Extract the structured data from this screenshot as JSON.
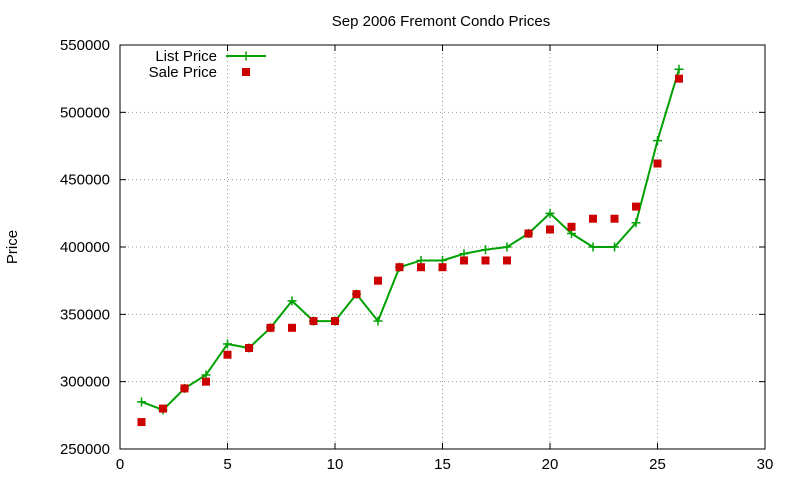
{
  "chart_data": {
    "type": "line",
    "title": "Sep 2006 Fremont Condo Prices",
    "xlabel": "",
    "ylabel": "Price",
    "xlim": [
      0,
      30
    ],
    "ylim": [
      250000,
      550000
    ],
    "xticks": [
      0,
      5,
      10,
      15,
      20,
      25,
      30
    ],
    "yticks": [
      250000,
      300000,
      350000,
      400000,
      450000,
      500000,
      550000
    ],
    "grid": true,
    "legend_position": "top-left",
    "series": [
      {
        "name": "List Price",
        "style": "line-plus",
        "color": "#00a000",
        "x": [
          1,
          2,
          3,
          4,
          5,
          6,
          7,
          8,
          9,
          10,
          11,
          12,
          13,
          14,
          15,
          16,
          17,
          18,
          19,
          20,
          21,
          22,
          23,
          24,
          25,
          26
        ],
        "values": [
          285000,
          279000,
          295000,
          305000,
          328000,
          325000,
          340000,
          360000,
          345000,
          345000,
          365000,
          345000,
          385000,
          390000,
          390000,
          395000,
          398000,
          400000,
          410000,
          425000,
          410000,
          400000,
          400000,
          418000,
          479000,
          532000
        ]
      },
      {
        "name": "Sale Price",
        "style": "square-points",
        "color": "#cc0000",
        "x": [
          1,
          2,
          3,
          4,
          5,
          6,
          7,
          8,
          9,
          10,
          11,
          12,
          13,
          14,
          15,
          16,
          17,
          18,
          19,
          20,
          21,
          22,
          23,
          24,
          25,
          26
        ],
        "values": [
          270000,
          280000,
          295000,
          300000,
          320000,
          325000,
          340000,
          340000,
          345000,
          345000,
          365000,
          375000,
          385000,
          385000,
          385000,
          390000,
          390000,
          390000,
          410000,
          413000,
          415000,
          421000,
          421000,
          430000,
          462000,
          525000
        ]
      }
    ]
  }
}
